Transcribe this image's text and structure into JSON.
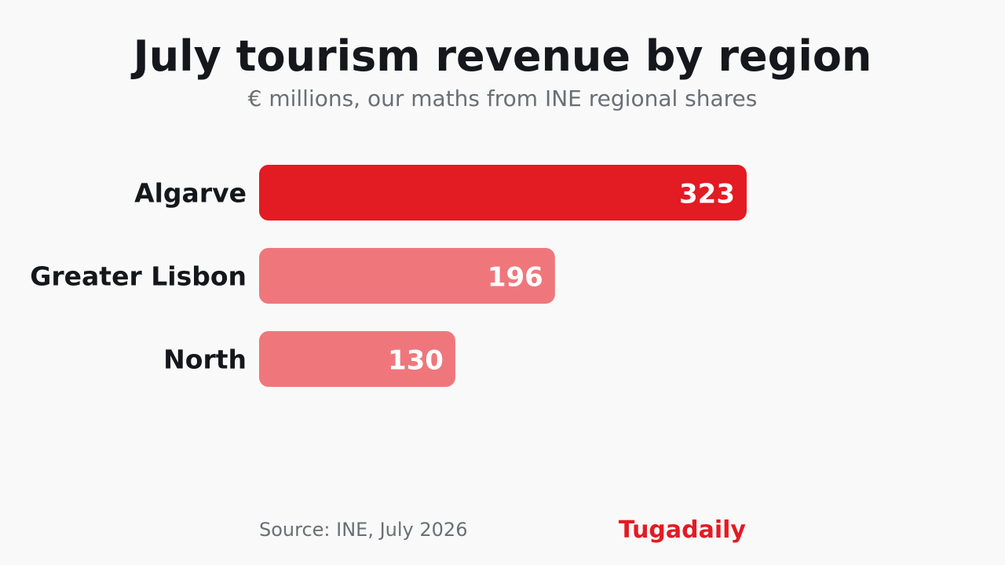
{
  "chart_data": {
    "type": "bar",
    "orientation": "horizontal",
    "title": "July tourism revenue by region",
    "subtitle": "€ millions, our maths from INE regional shares",
    "categories": [
      "Algarve",
      "Greater Lisbon",
      "North"
    ],
    "values": [
      323,
      196,
      130
    ],
    "xlabel": "",
    "ylabel": "",
    "xlim": [
      0,
      323
    ],
    "grid": false,
    "legend": "none",
    "highlight_index": 0
  },
  "colors": {
    "background": "#f9f9f9",
    "highlight_bar": "#e31b23",
    "bar": "#ef777c",
    "title": "#15171c",
    "subtitle": "#6b6e75",
    "category_label": "#15171c",
    "value_label": "#ffffff",
    "source": "#6b6e75",
    "brand": "#e31b23"
  },
  "footer": {
    "source": "Source: INE, July 2026",
    "brand": "Tugadaily"
  }
}
